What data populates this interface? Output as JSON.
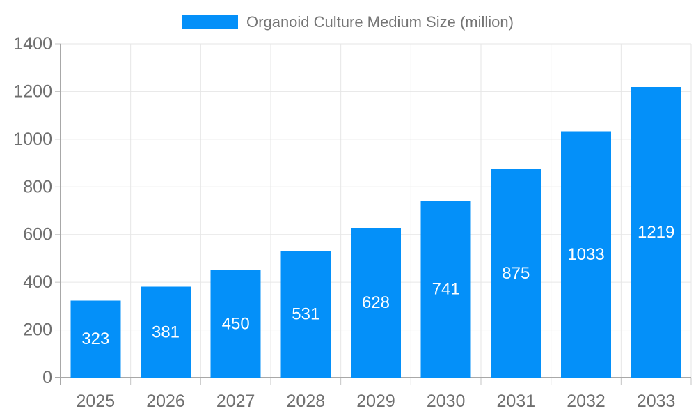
{
  "chart_data": {
    "type": "bar",
    "title": "Organoid Culture Medium Size (million)",
    "legend": {
      "label": "Organoid Culture Medium Size (million)",
      "position": "top"
    },
    "categories": [
      "2025",
      "2026",
      "2027",
      "2028",
      "2029",
      "2030",
      "2031",
      "2032",
      "2033"
    ],
    "series": [
      {
        "name": "Organoid Culture Medium Size (million)",
        "values": [
          323,
          381,
          450,
          531,
          628,
          741,
          875,
          1033,
          1219
        ]
      }
    ],
    "xlabel": "",
    "ylabel": "",
    "ylim": [
      0,
      1400
    ],
    "ytick_step": 200,
    "yticks": [
      0,
      200,
      400,
      600,
      800,
      1000,
      1200,
      1400
    ],
    "grid": true,
    "legend_position": "top",
    "value_label_placement": "inside-center",
    "colors": {
      "bar": "#0490f9",
      "value_label": "#ffffff",
      "axis_label": "#6f6f6f",
      "legend_text": "#757575",
      "gridline": "#e6e6e6",
      "axis_line": "#a8a8a8",
      "tick": "#c4c4c4",
      "background": "#ffffff"
    }
  }
}
